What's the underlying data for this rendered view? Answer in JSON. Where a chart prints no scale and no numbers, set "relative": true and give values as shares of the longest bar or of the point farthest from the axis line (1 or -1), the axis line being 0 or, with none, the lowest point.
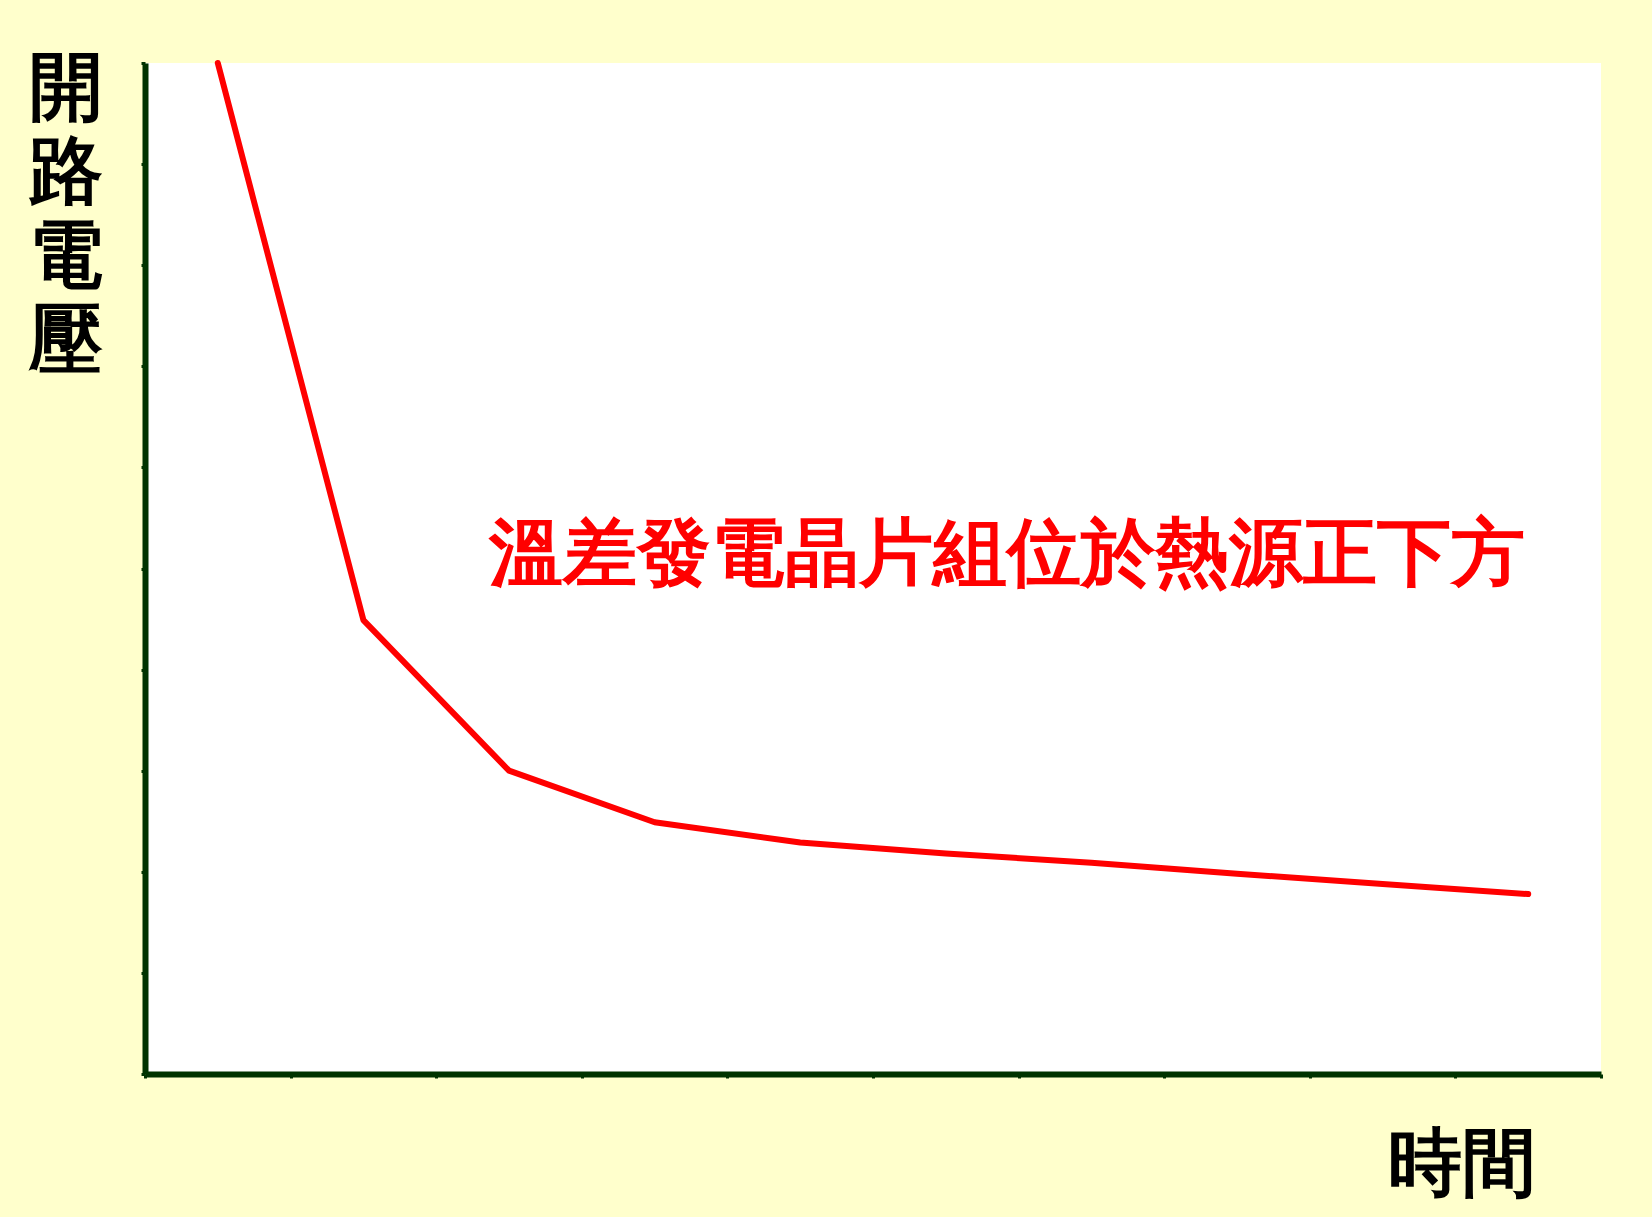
{
  "chart_data": {
    "type": "line",
    "relative": true,
    "ylabel": "開路電壓",
    "xlabel": "時間",
    "categories": [
      null,
      null,
      null,
      null,
      null,
      null,
      null,
      null,
      null,
      null
    ],
    "series": [
      {
        "color": "#ff0000",
        "values": [
          1,
          0.449,
          0.3,
          0.249,
          0.229,
          0.218,
          0.209,
          0.198,
          0.188,
          0.178
        ]
      }
    ],
    "annotations": [
      "溫差發電晶片組位於熱源正下方"
    ],
    "marker": "none",
    "line_style": "solid",
    "grid": false
  }
}
